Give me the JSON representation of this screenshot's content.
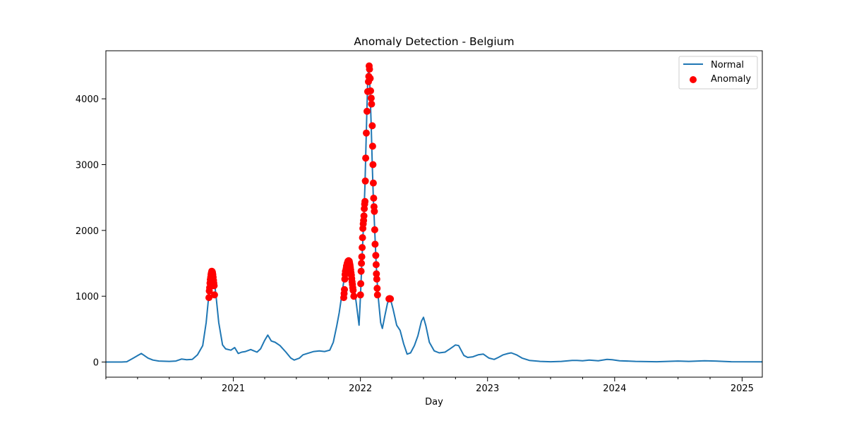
{
  "chart_data": {
    "type": "line",
    "title": "Anomaly Detection - Belgium",
    "xlabel": "Day",
    "ylabel": "",
    "xlim": [
      "2020-01-01",
      "2025-02-28"
    ],
    "ylim": [
      -230,
      4730
    ],
    "x_ticks": [
      {
        "date": "2021-01-01",
        "label": "2021"
      },
      {
        "date": "2022-01-01",
        "label": "2022"
      },
      {
        "date": "2023-01-01",
        "label": "2023"
      },
      {
        "date": "2024-01-01",
        "label": "2024"
      },
      {
        "date": "2025-01-01",
        "label": "2025"
      }
    ],
    "x_minor_ticks": [
      "2020-01-01",
      "2020-04-01",
      "2020-07-01",
      "2020-10-01",
      "2021-04-01",
      "2021-07-01",
      "2021-10-01",
      "2022-04-01",
      "2022-07-01",
      "2022-10-01",
      "2023-04-01",
      "2023-07-01",
      "2023-10-01",
      "2024-04-01",
      "2024-07-01",
      "2024-10-01"
    ],
    "y_ticks": [
      0,
      1000,
      2000,
      3000,
      4000
    ],
    "legend": {
      "position": "top-right",
      "entries": [
        "Normal",
        "Anomaly"
      ]
    },
    "colors": {
      "normal": "#1f77b4",
      "anomaly": "#ff0000"
    },
    "series": [
      {
        "name": "Normal",
        "kind": "line",
        "points": [
          [
            "2020-01-01",
            0
          ],
          [
            "2020-02-15",
            0
          ],
          [
            "2020-03-01",
            5
          ],
          [
            "2020-03-20",
            60
          ],
          [
            "2020-04-05",
            110
          ],
          [
            "2020-04-12",
            130
          ],
          [
            "2020-04-20",
            100
          ],
          [
            "2020-05-01",
            60
          ],
          [
            "2020-05-15",
            30
          ],
          [
            "2020-06-01",
            15
          ],
          [
            "2020-07-01",
            10
          ],
          [
            "2020-07-20",
            15
          ],
          [
            "2020-08-05",
            45
          ],
          [
            "2020-08-20",
            35
          ],
          [
            "2020-09-05",
            40
          ],
          [
            "2020-09-20",
            110
          ],
          [
            "2020-10-05",
            250
          ],
          [
            "2020-10-15",
            600
          ],
          [
            "2020-10-22",
            980
          ],
          [
            "2020-10-28",
            1200
          ],
          [
            "2020-11-02",
            1380
          ],
          [
            "2020-11-07",
            1250
          ],
          [
            "2020-11-12",
            1020
          ],
          [
            "2020-11-20",
            600
          ],
          [
            "2020-12-01",
            260
          ],
          [
            "2020-12-10",
            200
          ],
          [
            "2020-12-25",
            180
          ],
          [
            "2021-01-05",
            220
          ],
          [
            "2021-01-15",
            130
          ],
          [
            "2021-01-25",
            150
          ],
          [
            "2021-02-05",
            160
          ],
          [
            "2021-02-20",
            190
          ],
          [
            "2021-03-01",
            170
          ],
          [
            "2021-03-10",
            150
          ],
          [
            "2021-03-20",
            200
          ],
          [
            "2021-04-01",
            330
          ],
          [
            "2021-04-10",
            410
          ],
          [
            "2021-04-20",
            320
          ],
          [
            "2021-05-01",
            300
          ],
          [
            "2021-05-15",
            250
          ],
          [
            "2021-06-01",
            150
          ],
          [
            "2021-06-15",
            60
          ],
          [
            "2021-06-25",
            30
          ],
          [
            "2021-07-10",
            60
          ],
          [
            "2021-07-20",
            110
          ],
          [
            "2021-08-01",
            130
          ],
          [
            "2021-08-20",
            160
          ],
          [
            "2021-09-05",
            170
          ],
          [
            "2021-09-20",
            160
          ],
          [
            "2021-10-05",
            180
          ],
          [
            "2021-10-15",
            300
          ],
          [
            "2021-10-25",
            550
          ],
          [
            "2021-11-01",
            750
          ],
          [
            "2021-11-08",
            1000
          ],
          [
            "2021-11-15",
            1260
          ],
          [
            "2021-11-22",
            1450
          ],
          [
            "2021-11-30",
            1530
          ],
          [
            "2021-12-05",
            1450
          ],
          [
            "2021-12-12",
            1200
          ],
          [
            "2021-12-20",
            900
          ],
          [
            "2021-12-28",
            560
          ],
          [
            "2022-01-01",
            1000
          ],
          [
            "2022-01-05",
            1500
          ],
          [
            "2022-01-10",
            2100
          ],
          [
            "2022-01-14",
            2700
          ],
          [
            "2022-01-18",
            3500
          ],
          [
            "2022-01-22",
            4300
          ],
          [
            "2022-01-25",
            4500
          ],
          [
            "2022-01-28",
            4200
          ],
          [
            "2022-02-01",
            3600
          ],
          [
            "2022-02-04",
            3000
          ],
          [
            "2022-02-07",
            2500
          ],
          [
            "2022-02-11",
            2000
          ],
          [
            "2022-02-15",
            1500
          ],
          [
            "2022-02-20",
            1050
          ],
          [
            "2022-02-28",
            600
          ],
          [
            "2022-03-05",
            510
          ],
          [
            "2022-03-12",
            700
          ],
          [
            "2022-03-20",
            900
          ],
          [
            "2022-03-28",
            960
          ],
          [
            "2022-04-05",
            800
          ],
          [
            "2022-04-15",
            560
          ],
          [
            "2022-04-25",
            480
          ],
          [
            "2022-05-05",
            280
          ],
          [
            "2022-05-15",
            120
          ],
          [
            "2022-05-25",
            140
          ],
          [
            "2022-06-05",
            250
          ],
          [
            "2022-06-15",
            400
          ],
          [
            "2022-06-25",
            620
          ],
          [
            "2022-07-01",
            680
          ],
          [
            "2022-07-08",
            550
          ],
          [
            "2022-07-18",
            300
          ],
          [
            "2022-08-01",
            170
          ],
          [
            "2022-08-15",
            140
          ],
          [
            "2022-09-01",
            150
          ],
          [
            "2022-09-15",
            200
          ],
          [
            "2022-10-01",
            260
          ],
          [
            "2022-10-10",
            250
          ],
          [
            "2022-10-25",
            100
          ],
          [
            "2022-11-05",
            70
          ],
          [
            "2022-11-20",
            80
          ],
          [
            "2022-12-05",
            110
          ],
          [
            "2022-12-20",
            120
          ],
          [
            "2023-01-05",
            60
          ],
          [
            "2023-01-20",
            40
          ],
          [
            "2023-02-01",
            70
          ],
          [
            "2023-02-15",
            110
          ],
          [
            "2023-03-01",
            130
          ],
          [
            "2023-03-10",
            140
          ],
          [
            "2023-03-25",
            110
          ],
          [
            "2023-04-10",
            60
          ],
          [
            "2023-05-01",
            25
          ],
          [
            "2023-06-01",
            10
          ],
          [
            "2023-07-01",
            5
          ],
          [
            "2023-08-01",
            10
          ],
          [
            "2023-09-01",
            25
          ],
          [
            "2023-09-15",
            25
          ],
          [
            "2023-10-01",
            20
          ],
          [
            "2023-10-20",
            30
          ],
          [
            "2023-11-15",
            20
          ],
          [
            "2023-12-10",
            40
          ],
          [
            "2023-12-25",
            35
          ],
          [
            "2024-01-15",
            20
          ],
          [
            "2024-03-01",
            10
          ],
          [
            "2024-05-01",
            5
          ],
          [
            "2024-07-01",
            15
          ],
          [
            "2024-08-01",
            10
          ],
          [
            "2024-09-15",
            20
          ],
          [
            "2024-10-15",
            15
          ],
          [
            "2024-12-01",
            5
          ],
          [
            "2025-02-28",
            3
          ]
        ]
      },
      {
        "name": "Anomaly",
        "kind": "scatter",
        "points": [
          [
            "2020-10-23",
            980
          ],
          [
            "2020-10-24",
            1080
          ],
          [
            "2020-10-25",
            1130
          ],
          [
            "2020-10-26",
            1200
          ],
          [
            "2020-10-27",
            1250
          ],
          [
            "2020-10-28",
            1290
          ],
          [
            "2020-10-29",
            1330
          ],
          [
            "2020-10-30",
            1360
          ],
          [
            "2020-10-31",
            1380
          ],
          [
            "2020-11-01",
            1375
          ],
          [
            "2020-11-02",
            1365
          ],
          [
            "2020-11-03",
            1330
          ],
          [
            "2020-11-04",
            1290
          ],
          [
            "2020-11-05",
            1240
          ],
          [
            "2020-11-06",
            1200
          ],
          [
            "2020-11-07",
            1160
          ],
          [
            "2020-11-08",
            1020
          ],
          [
            "2021-11-14",
            980
          ],
          [
            "2021-11-15",
            1040
          ],
          [
            "2021-11-16",
            1100
          ],
          [
            "2021-11-17",
            1260
          ],
          [
            "2021-11-18",
            1330
          ],
          [
            "2021-11-19",
            1380
          ],
          [
            "2021-11-21",
            1420
          ],
          [
            "2021-11-22",
            1460
          ],
          [
            "2021-11-24",
            1500
          ],
          [
            "2021-11-26",
            1530
          ],
          [
            "2021-11-28",
            1540
          ],
          [
            "2021-11-30",
            1530
          ],
          [
            "2021-12-01",
            1500
          ],
          [
            "2021-12-02",
            1470
          ],
          [
            "2021-12-03",
            1440
          ],
          [
            "2021-12-04",
            1400
          ],
          [
            "2021-12-05",
            1360
          ],
          [
            "2021-12-06",
            1320
          ],
          [
            "2021-12-07",
            1270
          ],
          [
            "2021-12-08",
            1220
          ],
          [
            "2021-12-09",
            1180
          ],
          [
            "2021-12-10",
            1130
          ],
          [
            "2021-12-11",
            1090
          ],
          [
            "2021-12-13",
            1000
          ],
          [
            "2022-01-01",
            1020
          ],
          [
            "2022-01-02",
            1190
          ],
          [
            "2022-01-03",
            1380
          ],
          [
            "2022-01-04",
            1500
          ],
          [
            "2022-01-05",
            1600
          ],
          [
            "2022-01-06",
            1740
          ],
          [
            "2022-01-07",
            1890
          ],
          [
            "2022-01-08",
            2030
          ],
          [
            "2022-01-09",
            2100
          ],
          [
            "2022-01-10",
            2150
          ],
          [
            "2022-01-11",
            2220
          ],
          [
            "2022-01-12",
            2330
          ],
          [
            "2022-01-13",
            2400
          ],
          [
            "2022-01-14",
            2440
          ],
          [
            "2022-01-15",
            2750
          ],
          [
            "2022-01-16",
            3100
          ],
          [
            "2022-01-18",
            3480
          ],
          [
            "2022-01-20",
            3810
          ],
          [
            "2022-01-22",
            4110
          ],
          [
            "2022-01-24",
            4260
          ],
          [
            "2022-01-25",
            4340
          ],
          [
            "2022-01-26",
            4500
          ],
          [
            "2022-01-27",
            4450
          ],
          [
            "2022-01-29",
            4310
          ],
          [
            "2022-01-30",
            4120
          ],
          [
            "2022-02-01",
            4010
          ],
          [
            "2022-02-02",
            3920
          ],
          [
            "2022-02-04",
            3590
          ],
          [
            "2022-02-05",
            3280
          ],
          [
            "2022-02-06",
            3000
          ],
          [
            "2022-02-07",
            2720
          ],
          [
            "2022-02-08",
            2490
          ],
          [
            "2022-02-09",
            2360
          ],
          [
            "2022-02-10",
            2290
          ],
          [
            "2022-02-11",
            2010
          ],
          [
            "2022-02-12",
            1790
          ],
          [
            "2022-02-14",
            1620
          ],
          [
            "2022-02-15",
            1480
          ],
          [
            "2022-02-16",
            1340
          ],
          [
            "2022-02-17",
            1260
          ],
          [
            "2022-02-18",
            1120
          ],
          [
            "2022-02-19",
            1020
          ],
          [
            "2022-03-24",
            960
          ],
          [
            "2022-03-26",
            965
          ],
          [
            "2022-03-28",
            960
          ]
        ]
      }
    ]
  }
}
